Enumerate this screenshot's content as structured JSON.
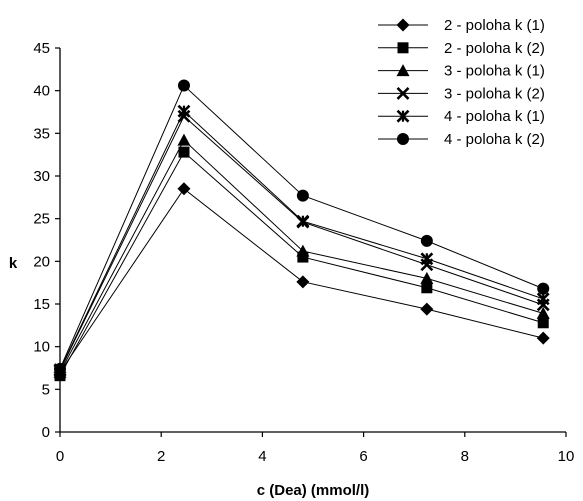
{
  "chart_data": {
    "type": "line",
    "title": "",
    "xlabel": "c (Dea)   (mmol/l)",
    "ylabel": "k",
    "xlim": [
      0,
      10
    ],
    "ylim": [
      0,
      45
    ],
    "x_ticks": [
      0,
      2,
      4,
      6,
      8,
      10
    ],
    "y_ticks": [
      0,
      5,
      10,
      15,
      20,
      25,
      30,
      35,
      40,
      45
    ],
    "grid": false,
    "legend_position": "top-right",
    "x": [
      0,
      2.45,
      4.8,
      7.25,
      9.55
    ],
    "series": [
      {
        "name": "2 - poloha k (1)",
        "marker": "diamond",
        "values": [
          7.0,
          28.5,
          17.6,
          14.4,
          11.0
        ]
      },
      {
        "name": "2 - poloha k (2)",
        "marker": "square",
        "values": [
          6.6,
          32.8,
          20.5,
          16.9,
          12.8
        ]
      },
      {
        "name": "3 - poloha k (1)",
        "marker": "triangle",
        "values": [
          7.0,
          34.2,
          21.2,
          18.0,
          13.9
        ]
      },
      {
        "name": "3 - poloha k (2)",
        "marker": "x",
        "values": [
          7.2,
          37.0,
          24.6,
          19.6,
          14.9
        ]
      },
      {
        "name": "4 - poloha k (1)",
        "marker": "star",
        "values": [
          7.3,
          37.6,
          24.7,
          20.3,
          15.6
        ]
      },
      {
        "name": "4 - poloha k (2)",
        "marker": "circle",
        "values": [
          7.4,
          40.6,
          27.7,
          22.4,
          16.8
        ]
      }
    ]
  }
}
